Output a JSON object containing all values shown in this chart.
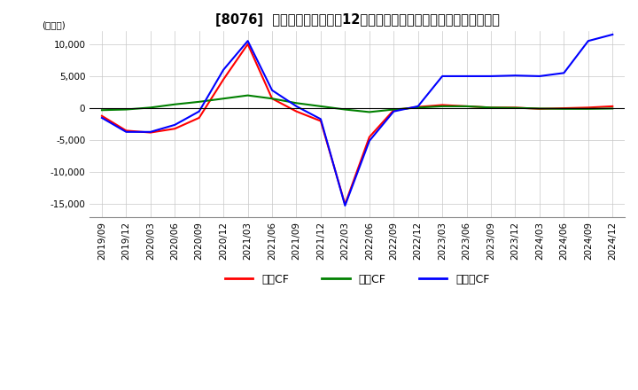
{
  "title": "[8076]  キャッシュフローの12か月移動合計の対前年同期増減額の推移",
  "ylabel": "(百万円)",
  "ylim": [
    -17000,
    12000
  ],
  "yticks": [
    -15000,
    -10000,
    -5000,
    0,
    5000,
    10000
  ],
  "legend_labels": [
    "営業CF",
    "投資CF",
    "フリーCF"
  ],
  "legend_colors": [
    "#ff0000",
    "#008000",
    "#0000ff"
  ],
  "x_labels": [
    "2019/09",
    "2019/12",
    "2020/03",
    "2020/06",
    "2020/09",
    "2020/12",
    "2021/03",
    "2021/06",
    "2021/09",
    "2021/12",
    "2022/03",
    "2022/06",
    "2022/09",
    "2022/12",
    "2023/03",
    "2023/06",
    "2023/09",
    "2023/12",
    "2024/03",
    "2024/06",
    "2024/09",
    "2024/12"
  ],
  "operating_cf": [
    -1200,
    -3500,
    -3800,
    -3200,
    -1500,
    4500,
    10000,
    1500,
    -500,
    -2000,
    -15000,
    -4500,
    -300,
    200,
    500,
    300,
    100,
    100,
    -100,
    0,
    100,
    300
  ],
  "investing_cf": [
    -300,
    -200,
    100,
    600,
    1000,
    1500,
    2000,
    1500,
    800,
    300,
    -200,
    -600,
    -200,
    100,
    300,
    300,
    100,
    50,
    -50,
    -100,
    -100,
    -50
  ],
  "free_cf": [
    -1500,
    -3700,
    -3700,
    -2600,
    -500,
    6000,
    10500,
    2800,
    300,
    -1700,
    -15200,
    -5100,
    -500,
    300,
    5000,
    5000,
    5000,
    5100,
    5000,
    5500,
    10500,
    11500
  ],
  "background_color": "#ffffff",
  "grid_color": "#c8c8c8",
  "title_fontsize": 10.5,
  "axis_fontsize": 7.5,
  "legend_fontsize": 9
}
